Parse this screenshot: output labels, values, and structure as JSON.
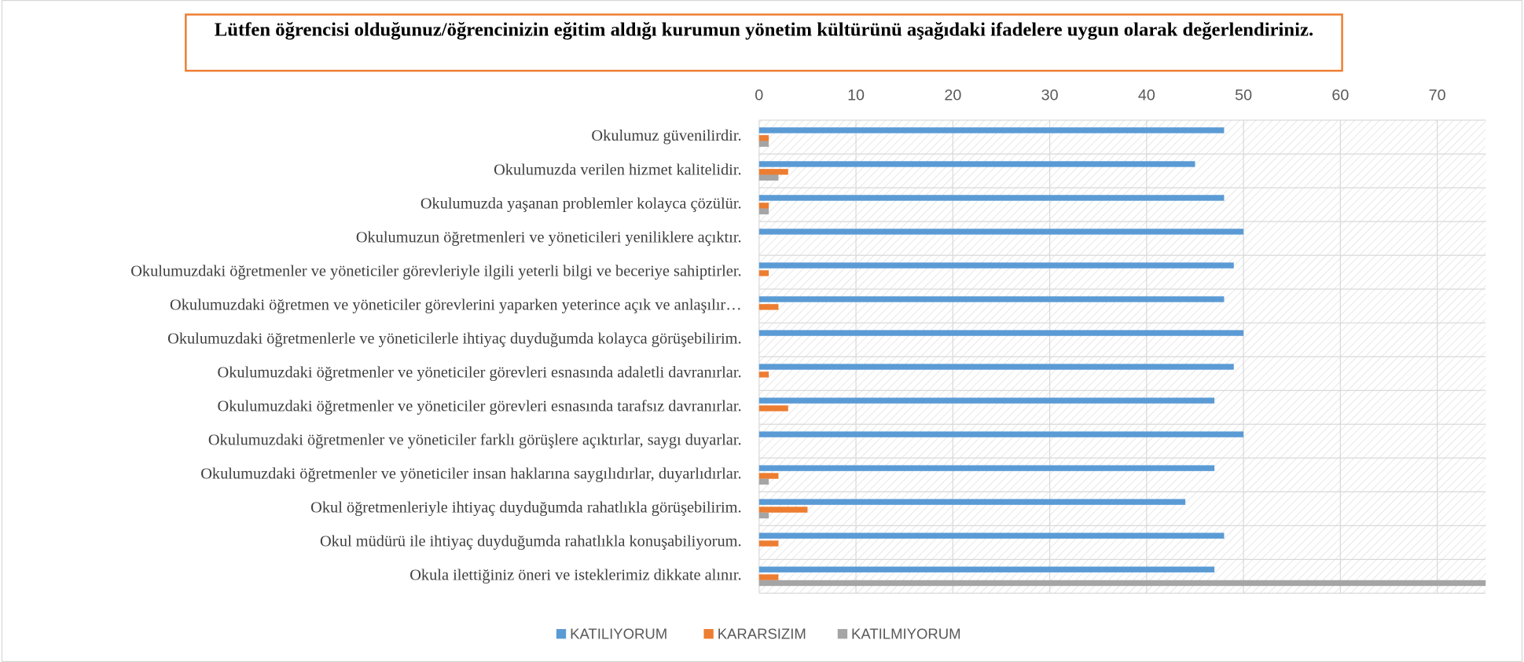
{
  "chart_data": {
    "type": "hbar",
    "title": "Lütfen öğrencisi olduğunuz/öğrencinizin eğitim aldığı kurumun yönetim kültürünü aşağıdaki ifadelere uygun olarak değerlendiriniz.",
    "categories": [
      "Okulumuz güvenilirdir.",
      "Okulumuzda verilen hizmet kalitelidir.",
      "Okulumuzda yaşanan problemler kolayca çözülür.",
      "Okulumuzun öğretmenleri ve yöneticileri yeniliklere açıktır.",
      "Okulumuzdaki öğretmenler ve yöneticiler görevleriyle ilgili yeterli bilgi ve beceriye sahiptirler.",
      "Okulumuzdaki öğretmen ve yöneticiler görevlerini yaparken yeterince açık ve anlaşılır…",
      "Okulumuzdaki öğretmenlerle ve yöneticilerle ihtiyaç duyduğumda kolayca görüşebilirim.",
      "Okulumuzdaki öğretmenler ve yöneticiler görevleri esnasında adaletli davranırlar.",
      "Okulumuzdaki öğretmenler ve yöneticiler görevleri esnasında tarafsız davranırlar.",
      "Okulumuzdaki öğretmenler ve yöneticiler farklı görüşlere açıktırlar, saygı duyarlar.",
      "Okulumuzdaki öğretmenler ve yöneticiler insan haklarına saygılıdırlar, duyarlıdırlar.",
      "Okul öğretmenleriyle ihtiyaç duyduğumda rahatlıkla görüşebilirim.",
      "Okul müdürü ile ihtiyaç duyduğumda rahatlıkla konuşabiliyorum.",
      "Okula ilettiğiniz öneri ve isteklerimiz dikkate alınır."
    ],
    "series": [
      {
        "name": "KATILIYORUM",
        "color": "#5b9bd5",
        "values": [
          48,
          45,
          48,
          50,
          49,
          48,
          50,
          49,
          47,
          50,
          47,
          44,
          48,
          47
        ]
      },
      {
        "name": "KARARSIZIM",
        "color": "#ed7d31",
        "values": [
          1,
          3,
          1,
          0,
          1,
          2,
          0,
          1,
          3,
          0,
          2,
          5,
          2,
          2
        ]
      },
      {
        "name": "KATILMIYORUM",
        "color": "#a5a5a5",
        "values": [
          1,
          2,
          1,
          0,
          0,
          0,
          0,
          0,
          0,
          0,
          1,
          1,
          0,
          75
        ]
      }
    ],
    "xlim": [
      0,
      75
    ],
    "xticks": [
      0,
      10,
      20,
      30,
      40,
      50,
      60,
      70
    ],
    "grid": true,
    "legend": "bottom"
  }
}
